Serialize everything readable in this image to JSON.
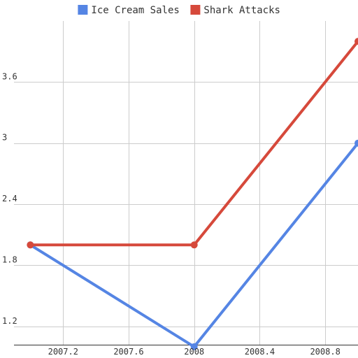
{
  "chart_data": {
    "type": "line",
    "title": "",
    "xlabel": "",
    "ylabel": "",
    "xlim": [
      2006.9,
      2009.0
    ],
    "ylim": [
      1.02,
      4.2
    ],
    "x_ticks": [
      2007.2,
      2007.6,
      2008,
      2008.4,
      2008.8
    ],
    "x_tick_labels": [
      "2007.2",
      "2007.6",
      "2008",
      "2008.4",
      "2008.8"
    ],
    "y_ticks": [
      1.2,
      1.8,
      2.4,
      3,
      3.6
    ],
    "y_tick_labels": [
      "1.2",
      "1.8",
      "2.4",
      "3",
      "3.6"
    ],
    "grid": true,
    "legend_position": "top",
    "series": [
      {
        "name": "Ice Cream Sales",
        "color": "#5585e4",
        "x": [
          2007,
          2008,
          2009
        ],
        "y": [
          2,
          1,
          3
        ]
      },
      {
        "name": "Shark Attacks",
        "color": "#d6493b",
        "x": [
          2007,
          2008,
          2009
        ],
        "y": [
          2,
          2,
          4
        ]
      }
    ]
  }
}
